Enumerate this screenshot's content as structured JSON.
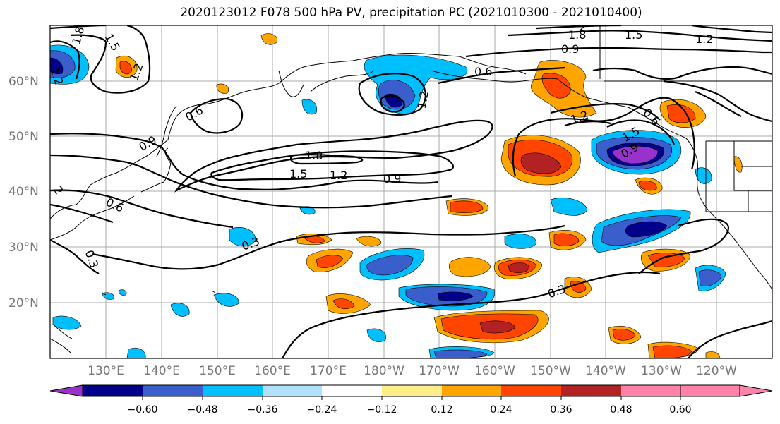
{
  "title": "2020123012 F078 500 hPa PV, precipitation PC (2021010300 - 2021010400)",
  "lat_labels": [
    "60°N",
    "50°N",
    "40°N",
    "30°N",
    "20°N"
  ],
  "lon_labels": [
    "130°E",
    "140°E",
    "150°E",
    "160°E",
    "170°E",
    "180°W",
    "170°W",
    "160°W",
    "150°W",
    "140°W",
    "130°W",
    "120°W"
  ],
  "colorbar": {
    "ticks": [
      "−0.60",
      "−0.48",
      "−0.36",
      "−0.24",
      "−0.12",
      "0.12",
      "0.24",
      "0.36",
      "0.48",
      "0.60"
    ],
    "colors": [
      "#9932cc",
      "#00008b",
      "#3a5fcd",
      "#00bfff",
      "#b0e2ff",
      "#ffffff",
      "#ffec8b",
      "#ffa500",
      "#ff4500",
      "#b22222",
      "#ff82ab"
    ]
  },
  "contour_labels": [
    "1.8",
    "1.5",
    "1.2",
    "2",
    "0.9",
    "0.6",
    "1.2",
    "0.6",
    "0.9",
    "1.8",
    "1.5",
    "1.2",
    "0.9",
    "1.2",
    "1.5",
    "1.2",
    "0.6",
    "0.3",
    "0.3",
    "0.3",
    "2",
    "1.8",
    "1.5",
    "1.2",
    "0.9",
    "0.6"
  ]
}
